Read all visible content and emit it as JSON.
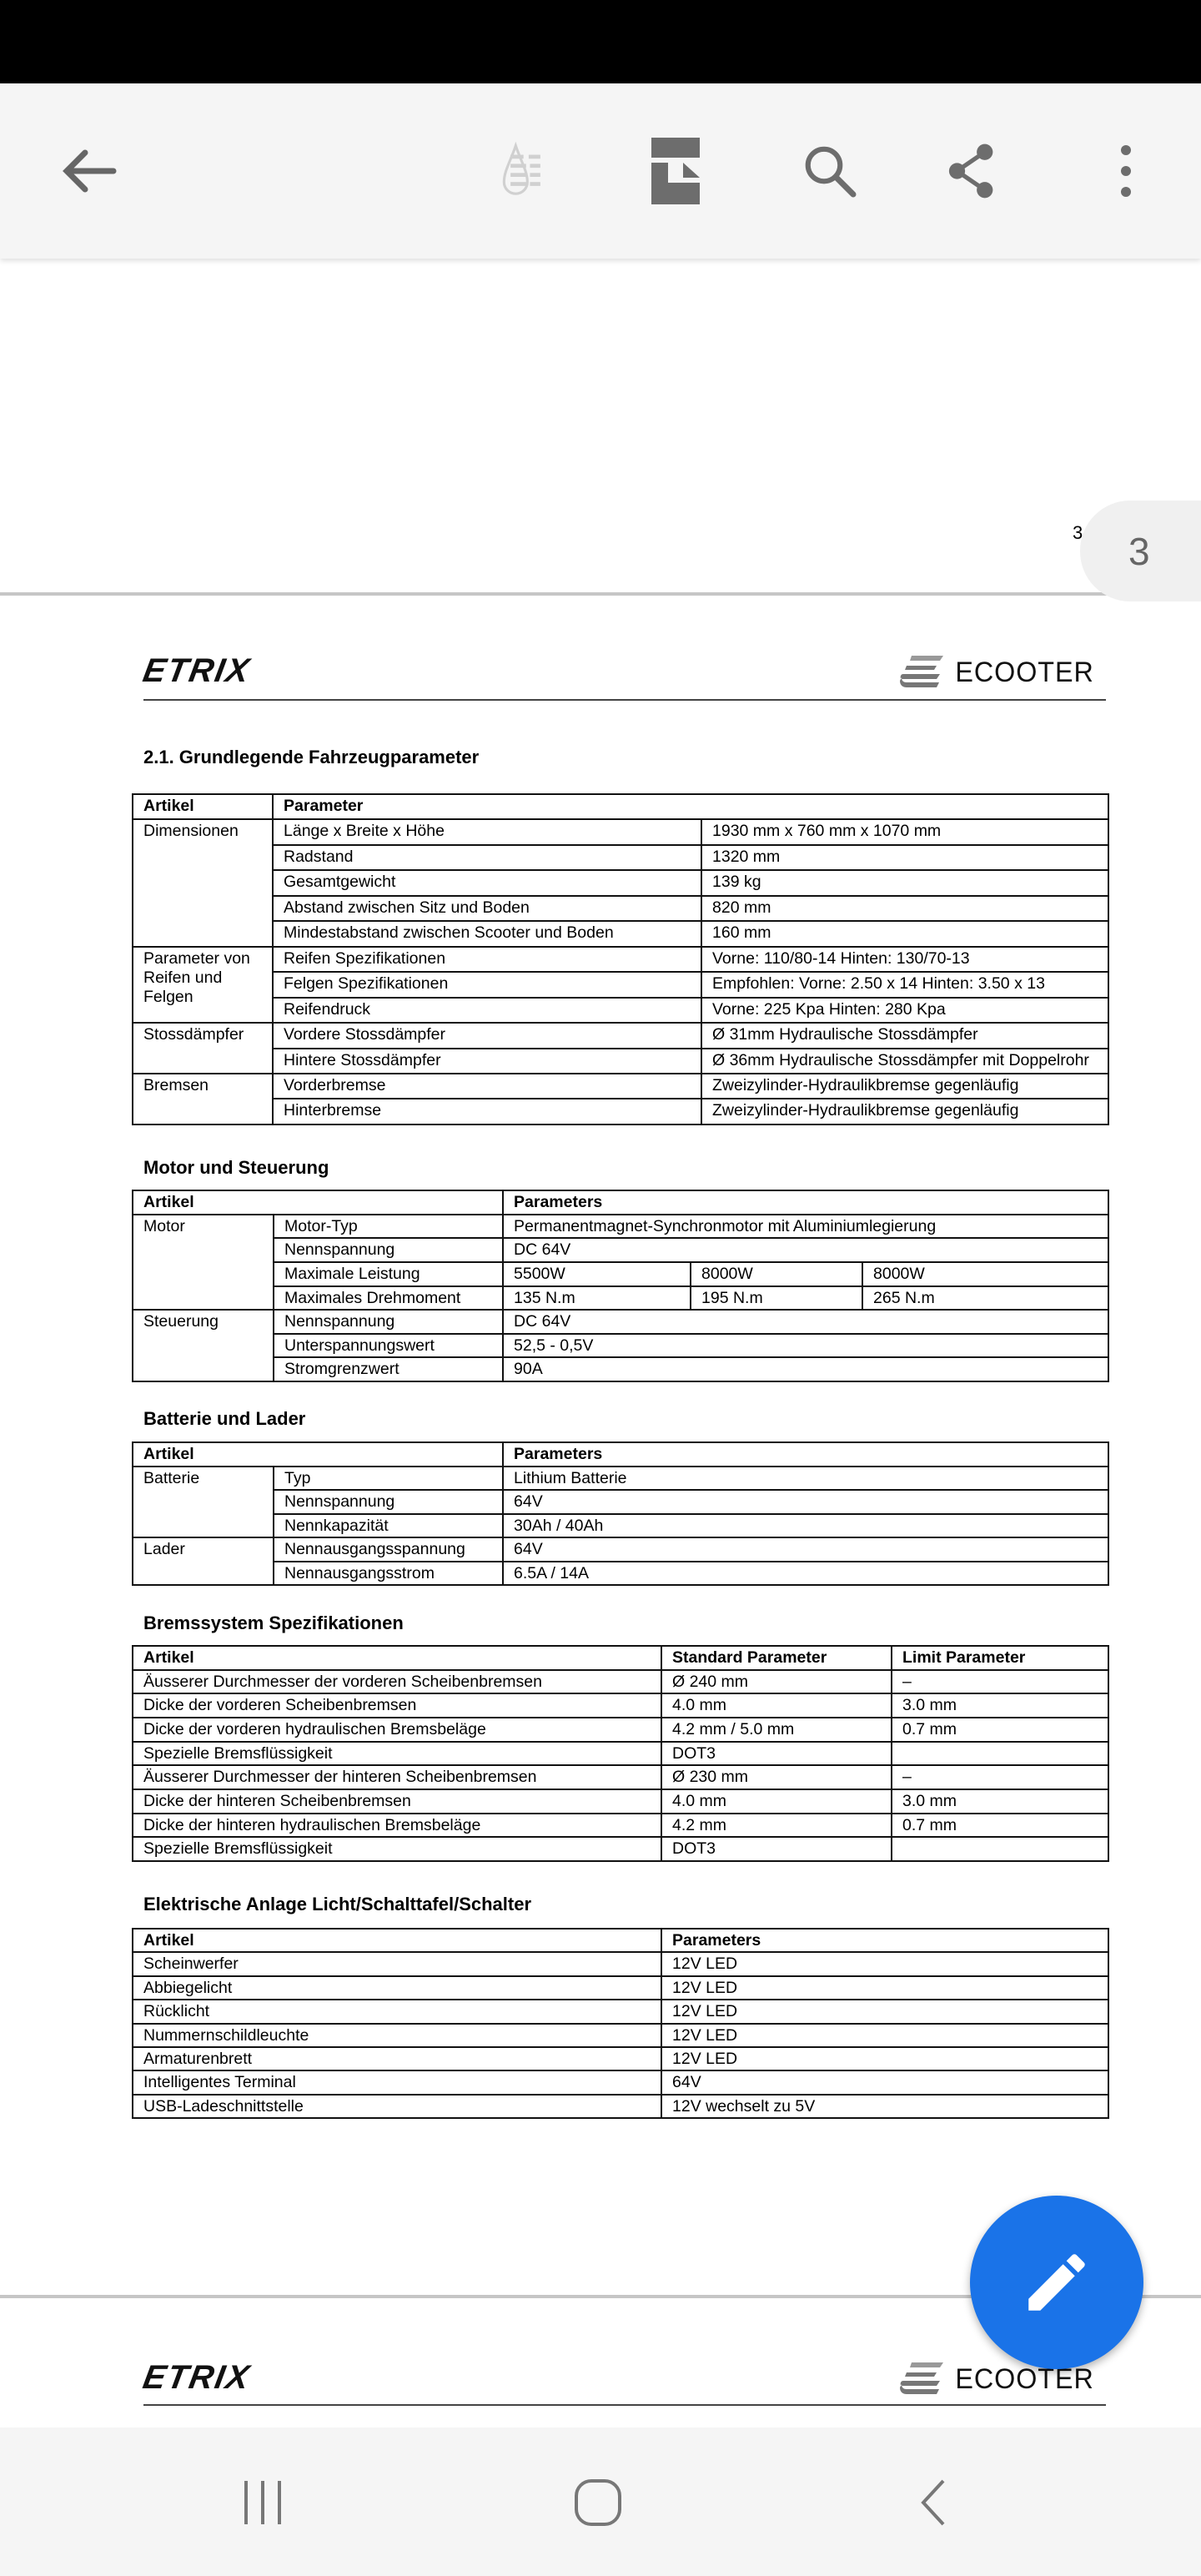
{
  "toolbar": {
    "icons": [
      "back-arrow-icon",
      "reading-mode-icon",
      "page-layout-icon",
      "search-icon",
      "share-icon",
      "more-vert-icon"
    ]
  },
  "page_indicator": {
    "current": "3",
    "page_number_text": "3"
  },
  "header": {
    "logo_left": "ETRIX",
    "logo_right": "ECOOTER"
  },
  "sections": {
    "s1": "2.1. Grundlegende Fahrzeugparameter",
    "s2": "Motor und Steuerung",
    "s3": "Batterie und Lader",
    "s4": "Bremssystem Spezifikationen",
    "s5": "Elektrische Anlage Licht/Schalttafel/Schalter"
  },
  "tables": {
    "t1": {
      "header": [
        "Artikel",
        "Parameter"
      ],
      "groups": [
        {
          "label": "Dimensionen",
          "rows": [
            [
              "Länge x Breite x Höhe",
              "1930 mm x 760 mm x 1070 mm"
            ],
            [
              "Radstand",
              "1320 mm"
            ],
            [
              "Gesamtgewicht",
              "139 kg"
            ],
            [
              "Abstand zwischen Sitz und Boden",
              "820 mm"
            ],
            [
              "Mindestabstand zwischen Scooter und Boden",
              "160 mm"
            ]
          ]
        },
        {
          "label": "Parameter von Reifen und Felgen",
          "rows": [
            [
              "Reifen Spezifikationen",
              "Vorne: 110/80-14 Hinten: 130/70-13"
            ],
            [
              "Felgen Spezifikationen",
              "Empfohlen: Vorne: 2.50 x 14 Hinten: 3.50 x 13"
            ],
            [
              "Reifendruck",
              "Vorne: 225 Kpa Hinten: 280 Kpa"
            ]
          ]
        },
        {
          "label": "Stossdämpfer",
          "rows": [
            [
              "Vordere Stossdämpfer",
              "Ø 31mm Hydraulische Stossdämpfer"
            ],
            [
              "Hintere Stossdämpfer",
              "Ø 36mm Hydraulische Stossdämpfer mit Doppelrohr"
            ]
          ]
        },
        {
          "label": "Bremsen",
          "rows": [
            [
              "Vorderbremse",
              "Zweizylinder-Hydraulikbremse gegenläufig"
            ],
            [
              "Hinterbremse",
              "Zweizylinder-Hydraulikbremse gegenläufig"
            ]
          ]
        }
      ]
    },
    "t2": {
      "header": [
        "Artikel",
        "Parameters"
      ],
      "groups": [
        {
          "label": "Motor",
          "rows": [
            [
              "Motor-Typ",
              "Permanentmagnet-Synchronmotor mit Aluminiumlegierung"
            ],
            [
              "Nennspannung",
              "DC 64V"
            ],
            [
              "Maximale Leistung",
              "5500W",
              "8000W",
              "8000W"
            ],
            [
              "Maximales Drehmoment",
              "135 N.m",
              "195 N.m",
              "265 N.m"
            ]
          ]
        },
        {
          "label": "Steuerung",
          "rows": [
            [
              "Nennspannung",
              "DC 64V"
            ],
            [
              "Unterspannungswert",
              "52,5 - 0,5V"
            ],
            [
              "Stromgrenzwert",
              "90A"
            ]
          ]
        }
      ]
    },
    "t3": {
      "header": [
        "Artikel",
        "Parameters"
      ],
      "groups": [
        {
          "label": "Batterie",
          "rows": [
            [
              "Typ",
              "Lithium Batterie"
            ],
            [
              "Nennspannung",
              "64V"
            ],
            [
              "Nennkapazität",
              "30Ah / 40Ah"
            ]
          ]
        },
        {
          "label": "Lader",
          "rows": [
            [
              "Nennausgangsspannung",
              "64V"
            ],
            [
              "Nennausgangsstrom",
              "6.5A / 14A"
            ]
          ]
        }
      ]
    },
    "t4": {
      "header": [
        "Artikel",
        "Standard Parameter",
        "Limit Parameter"
      ],
      "rows": [
        [
          "Äusserer Durchmesser der vorderen Scheibenbremsen",
          "Ø 240 mm",
          "–"
        ],
        [
          "Dicke der vorderen Scheibenbremsen",
          "4.0 mm",
          "3.0 mm"
        ],
        [
          "Dicke der vorderen hydraulischen Bremsbeläge",
          "4.2 mm / 5.0 mm",
          "0.7 mm"
        ],
        [
          "Spezielle Bremsflüssigkeit",
          "DOT3",
          ""
        ],
        [
          "Äusserer Durchmesser der hinteren Scheibenbremsen",
          "Ø 230 mm",
          "–"
        ],
        [
          "Dicke der hinteren Scheibenbremsen",
          "4.0 mm",
          "3.0 mm"
        ],
        [
          "Dicke der hinteren hydraulischen Bremsbeläge",
          "4.2 mm",
          "0.7 mm"
        ],
        [
          "Spezielle Bremsflüssigkeit",
          "DOT3",
          ""
        ]
      ]
    },
    "t5": {
      "header": [
        "Artikel",
        "Parameters"
      ],
      "rows": [
        [
          "Scheinwerfer",
          "12V LED"
        ],
        [
          "Abbiegelicht",
          "12V LED"
        ],
        [
          "Rücklicht",
          "12V LED"
        ],
        [
          "Nummernschildleuchte",
          "12V LED"
        ],
        [
          "Armaturenbrett",
          "12V LED"
        ],
        [
          "Intelligentes Terminal",
          "64V"
        ],
        [
          "USB-Ladeschnittstelle",
          "12V wechselt zu 5V"
        ]
      ]
    }
  },
  "fab": {
    "icon": "edit-pencil-icon",
    "color": "#1a73e8"
  },
  "navbar": {
    "icons": [
      "recent-apps-icon",
      "home-icon",
      "back-icon"
    ]
  }
}
